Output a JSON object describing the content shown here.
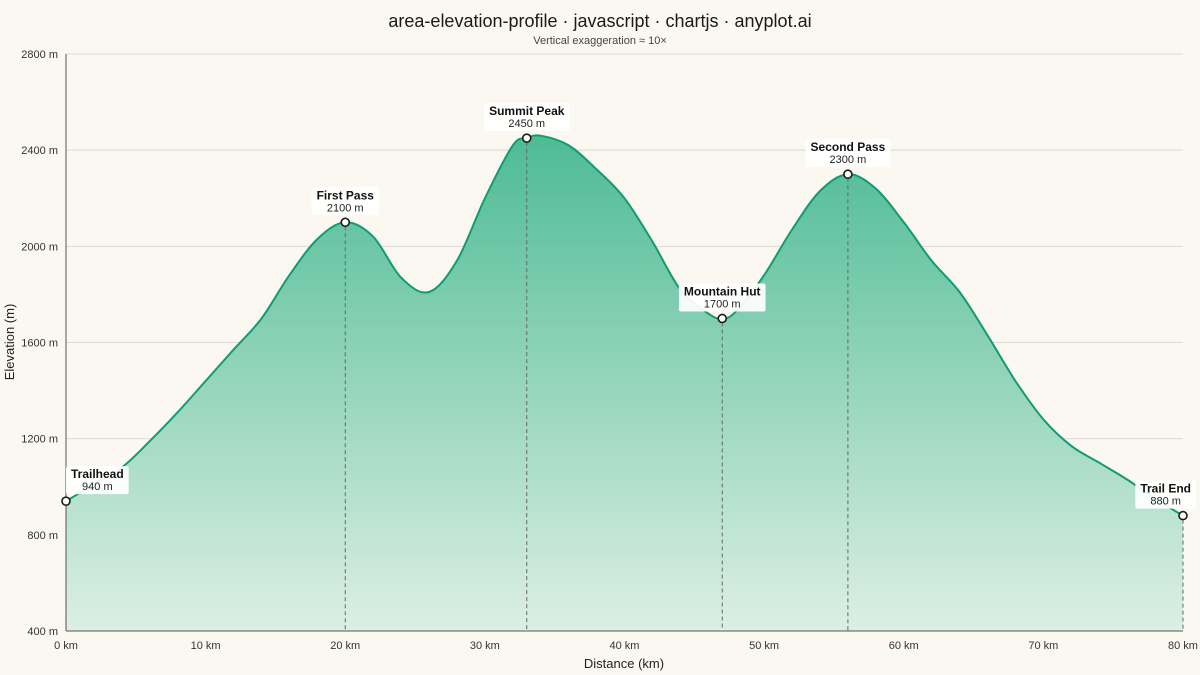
{
  "chart_data": {
    "type": "area",
    "title": "area-elevation-profile · javascript · chartjs · anyplot.ai",
    "subtitle": "Vertical exaggeration ≈ 10×",
    "xlabel": "Distance (km)",
    "ylabel": "Elevation (m)",
    "xlim": [
      0,
      80
    ],
    "ylim": [
      400,
      2800
    ],
    "x_ticks": [
      0,
      10,
      20,
      30,
      40,
      50,
      60,
      70,
      80
    ],
    "x_tick_labels": [
      "0 km",
      "10 km",
      "20 km",
      "30 km",
      "40 km",
      "50 km",
      "60 km",
      "70 km",
      "80 km"
    ],
    "y_ticks": [
      400,
      800,
      1200,
      1600,
      2000,
      2400,
      2800
    ],
    "y_tick_labels": [
      "400 m",
      "800 m",
      "1200 m",
      "1600 m",
      "2000 m",
      "2400 m",
      "2800 m"
    ],
    "grid": true,
    "legend": "none",
    "colors": {
      "line": "#119B73",
      "fill_top": "#4DBB95",
      "fill_bottom": "#DDEFE5",
      "grid": "#DCDAD2",
      "marker_stroke": "#1a1a1a",
      "drop_line": "#666666"
    },
    "series": [
      {
        "x": [
          0,
          2,
          4,
          6,
          8,
          10,
          12,
          14,
          16,
          18,
          20,
          22,
          24,
          26,
          28,
          30,
          32,
          33,
          34,
          36,
          38,
          40,
          42,
          44,
          46,
          47,
          48,
          50,
          52,
          54,
          56,
          58,
          60,
          62,
          64,
          66,
          68,
          70,
          72,
          74,
          76,
          78,
          80
        ],
        "y": [
          940,
          1010,
          1080,
          1190,
          1310,
          1440,
          1570,
          1700,
          1880,
          2030,
          2100,
          2040,
          1870,
          1810,
          1940,
          2200,
          2420,
          2450,
          2460,
          2420,
          2320,
          2200,
          2020,
          1820,
          1720,
          1700,
          1730,
          1880,
          2070,
          2230,
          2300,
          2240,
          2100,
          1940,
          1810,
          1630,
          1440,
          1280,
          1170,
          1100,
          1030,
          950,
          880
        ]
      }
    ],
    "waypoints": [
      {
        "name": "Trailhead",
        "elevation_label": "940 m",
        "x": 0,
        "y": 940
      },
      {
        "name": "First Pass",
        "elevation_label": "2100 m",
        "x": 20,
        "y": 2100
      },
      {
        "name": "Summit Peak",
        "elevation_label": "2450 m",
        "x": 33,
        "y": 2450
      },
      {
        "name": "Mountain Hut",
        "elevation_label": "1700 m",
        "x": 47,
        "y": 1700
      },
      {
        "name": "Second Pass",
        "elevation_label": "2300 m",
        "x": 56,
        "y": 2300
      },
      {
        "name": "Trail End",
        "elevation_label": "880 m",
        "x": 80,
        "y": 880
      }
    ]
  }
}
